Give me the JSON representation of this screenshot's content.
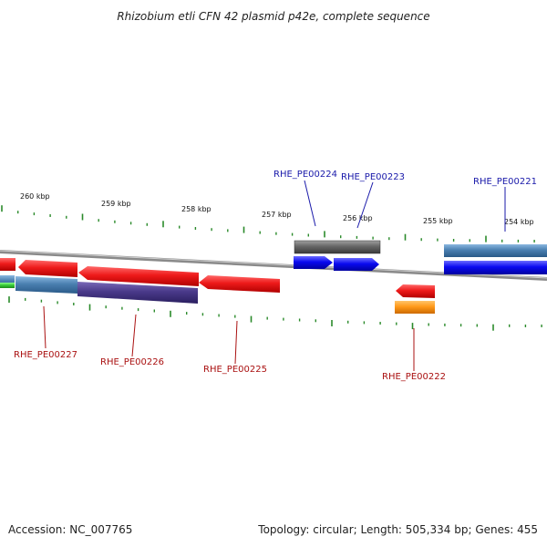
{
  "title": "Rhizobium etli CFN 42 plasmid p42e, complete sequence",
  "footer": {
    "accession": "Accession: NC_007765",
    "summary": "Topology: circular; Length: 505,334 bp; Genes: 455"
  },
  "scale": {
    "labels": [
      "260 kbp",
      "259 kbp",
      "258 kbp",
      "257 kbp",
      "256 kbp",
      "255 kbp",
      "254 kbp"
    ]
  },
  "genes": {
    "forward_labeled": [
      "RHE_PE00224",
      "RHE_PE00223",
      "RHE_PE00221"
    ],
    "reverse_labeled": [
      "RHE_PE00227",
      "RHE_PE00226",
      "RHE_PE00225",
      "RHE_PE00222"
    ]
  },
  "colors": {
    "forward_label": "#1a1aaa",
    "reverse_label": "#aa1111",
    "backbone": "#8a8a8a",
    "ticks": "#2a8a2a",
    "red_gene": "#ee1a1a",
    "blue_gene": "#0a0af0",
    "steel_gene": "#4a7fb0",
    "purple_gene": "#4a3a8a",
    "gray_gene": "#666666",
    "orange_gene": "#ff9a1a",
    "green_gene": "#3acc3a"
  }
}
